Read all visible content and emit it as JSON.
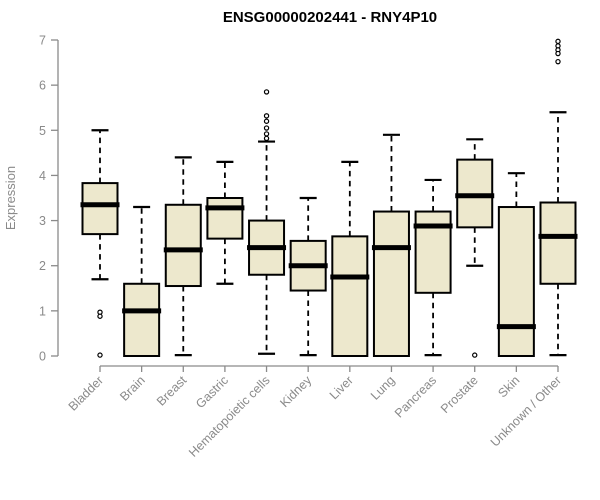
{
  "page": {
    "background": "#FFFFFF"
  },
  "chart_data": {
    "type": "boxplot",
    "title": "ENSG00000202441 - RNY4P10",
    "xlabel": "",
    "ylabel": "Expression",
    "ylim": [
      0,
      7
    ],
    "yticks": [
      0,
      1,
      2,
      3,
      4,
      5,
      6,
      7
    ],
    "grid": false,
    "legend": null,
    "colors": {
      "box_fill": "#EDE8CD",
      "box_border": "#000000",
      "median": "#000000",
      "whisker": "#000000",
      "outlier_stroke": "#000000",
      "axis": "#8A8A8A",
      "axis_text": "#8A8A8A",
      "title_text": "#000000",
      "background": "#FFFFFF"
    },
    "categories": [
      "Bladder",
      "Brain",
      "Breast",
      "Gastric",
      "Hematopoietic cells",
      "Kidney",
      "Liver",
      "Lung",
      "Pancreas",
      "Prostate",
      "Skin",
      "Unknown / Other"
    ],
    "boxes": [
      {
        "category": "Bladder",
        "whisker_low": 1.7,
        "q1": 2.7,
        "median": 3.35,
        "q3": 3.83,
        "whisker_high": 5.0,
        "outliers": [
          0.97,
          0.88,
          0.02
        ]
      },
      {
        "category": "Brain",
        "whisker_low": 0.0,
        "q1": 0.0,
        "median": 1.0,
        "q3": 1.6,
        "whisker_high": 3.3,
        "outliers": []
      },
      {
        "category": "Breast",
        "whisker_low": 0.02,
        "q1": 1.55,
        "median": 2.35,
        "q3": 3.35,
        "whisker_high": 4.4,
        "outliers": []
      },
      {
        "category": "Gastric",
        "whisker_low": 1.6,
        "q1": 2.6,
        "median": 3.28,
        "q3": 3.5,
        "whisker_high": 4.3,
        "outliers": []
      },
      {
        "category": "Hematopoietic cells",
        "whisker_low": 0.05,
        "q1": 1.8,
        "median": 2.4,
        "q3": 3.0,
        "whisker_high": 4.75,
        "outliers": [
          5.85,
          5.32,
          5.2,
          5.05,
          4.92,
          4.82
        ]
      },
      {
        "category": "Kidney",
        "whisker_low": 0.02,
        "q1": 1.45,
        "median": 2.0,
        "q3": 2.55,
        "whisker_high": 3.5,
        "outliers": []
      },
      {
        "category": "Liver",
        "whisker_low": 0.0,
        "q1": 0.0,
        "median": 1.75,
        "q3": 2.65,
        "whisker_high": 4.3,
        "outliers": []
      },
      {
        "category": "Lung",
        "whisker_low": 0.0,
        "q1": 0.0,
        "median": 2.4,
        "q3": 3.2,
        "whisker_high": 4.9,
        "outliers": []
      },
      {
        "category": "Pancreas",
        "whisker_low": 0.02,
        "q1": 1.4,
        "median": 2.88,
        "q3": 3.2,
        "whisker_high": 3.9,
        "outliers": []
      },
      {
        "category": "Prostate",
        "whisker_low": 2.0,
        "q1": 2.85,
        "median": 3.55,
        "q3": 4.35,
        "whisker_high": 4.8,
        "outliers": [
          0.02
        ]
      },
      {
        "category": "Skin",
        "whisker_low": 0.0,
        "q1": 0.0,
        "median": 0.65,
        "q3": 3.3,
        "whisker_high": 4.05,
        "outliers": []
      },
      {
        "category": "Unknown / Other",
        "whisker_low": 0.02,
        "q1": 1.6,
        "median": 2.65,
        "q3": 3.4,
        "whisker_high": 5.4,
        "outliers": [
          6.97,
          6.87,
          6.78,
          6.7,
          6.52
        ]
      }
    ]
  }
}
